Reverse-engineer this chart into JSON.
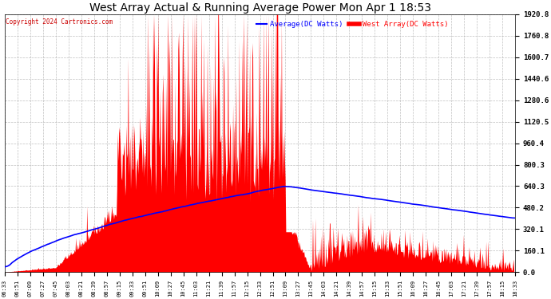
{
  "title": "West Array Actual & Running Average Power Mon Apr 1 18:53",
  "copyright": "Copyright 2024 Cartronics.com",
  "legend_avg": "Average(DC Watts)",
  "legend_west": "West Array(DC Watts)",
  "ymax": 1920.8,
  "ymin": 0.0,
  "yticks": [
    0.0,
    160.1,
    320.1,
    480.2,
    640.3,
    800.3,
    960.4,
    1120.5,
    1280.6,
    1440.6,
    1600.7,
    1760.8,
    1920.8
  ],
  "bg_color": "#ffffff",
  "fill_color": "#ff0000",
  "avg_line_color": "#0000ff",
  "grid_color": "#b0b0b0",
  "xtick_labels": [
    "06:33",
    "06:51",
    "07:09",
    "07:27",
    "07:45",
    "08:03",
    "08:21",
    "08:39",
    "08:57",
    "09:15",
    "09:33",
    "09:51",
    "10:09",
    "10:27",
    "10:45",
    "11:03",
    "11:21",
    "11:39",
    "11:57",
    "12:15",
    "12:33",
    "12:51",
    "13:09",
    "13:27",
    "13:45",
    "14:03",
    "14:21",
    "14:39",
    "14:57",
    "15:15",
    "15:33",
    "15:51",
    "16:09",
    "16:27",
    "16:45",
    "17:03",
    "17:21",
    "17:39",
    "17:57",
    "18:15",
    "18:33"
  ],
  "num_points": 820
}
